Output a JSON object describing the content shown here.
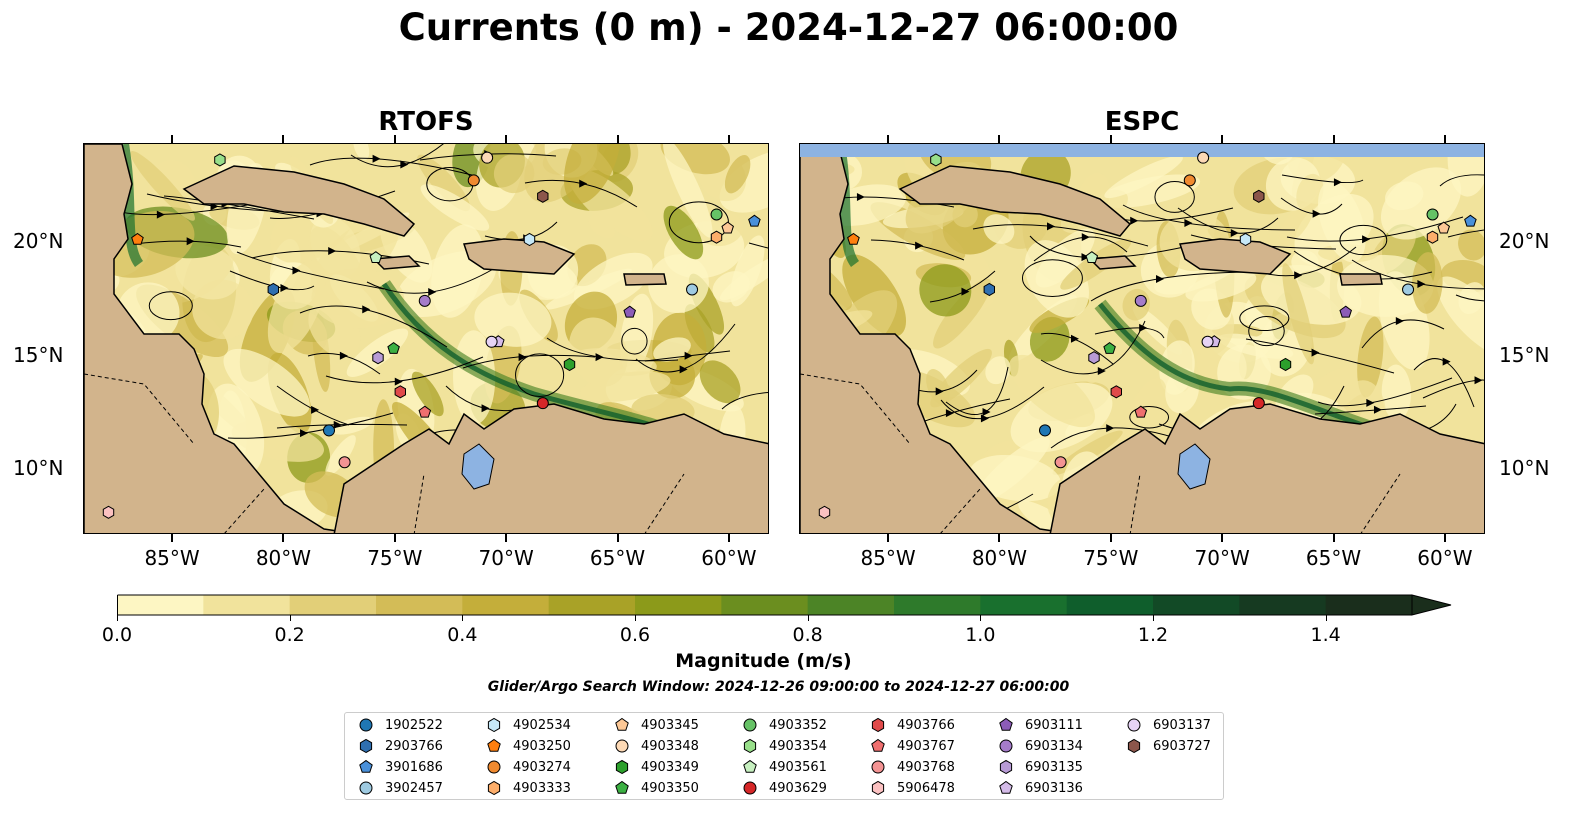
{
  "title": "Currents (0 m) - 2024-12-27 06:00:00",
  "panels": [
    {
      "title": "RTOFS"
    },
    {
      "title": "ESPC"
    }
  ],
  "lat_labels": [
    "20°N",
    "15°N",
    "10°N"
  ],
  "lon_labels": [
    "85°W",
    "80°W",
    "75°W",
    "70°W",
    "65°W",
    "60°W"
  ],
  "colorbar": {
    "label": "Magnitude (m/s)",
    "ticks": [
      "0.0",
      "0.2",
      "0.4",
      "0.6",
      "0.8",
      "1.0",
      "1.2",
      "1.4"
    ],
    "min": 0.0,
    "max": 1.5,
    "step": 0.1,
    "extend": "max",
    "colors": [
      "#fdf6c3",
      "#f1e39c",
      "#e2cf78",
      "#d3bc57",
      "#c4ae3a",
      "#a9a227",
      "#8c9a1a",
      "#6b8e1f",
      "#4c8426",
      "#2e7a2b",
      "#19702e",
      "#0f5e2c",
      "#124a26",
      "#163a21",
      "#1a2e1c"
    ]
  },
  "search_window": "Glider/Argo Search Window: 2024-12-26 09:00:00 to 2024-12-27 06:00:00",
  "colors": {
    "land": "#d2b48c",
    "ocean_low": "#fdf6c3",
    "ocean_mid": "#8c9a1a",
    "lakes": "#8db3e2"
  },
  "legend": [
    {
      "id": "1902522",
      "marker": "circle",
      "color": "#1f77b4"
    },
    {
      "id": "2903766",
      "marker": "hexagon",
      "color": "#2f6fb0"
    },
    {
      "id": "3901686",
      "marker": "pentagon",
      "color": "#4a90d9"
    },
    {
      "id": "3902457",
      "marker": "circle",
      "color": "#9ecae1"
    },
    {
      "id": "4902534",
      "marker": "hexagon",
      "color": "#c6e8f7"
    },
    {
      "id": "4903250",
      "marker": "pentagon",
      "color": "#ff7f0e"
    },
    {
      "id": "4903274",
      "marker": "circle",
      "color": "#f08a30"
    },
    {
      "id": "4903333",
      "marker": "hexagon",
      "color": "#fdae6b"
    },
    {
      "id": "4903345",
      "marker": "pentagon",
      "color": "#fdc896"
    },
    {
      "id": "4903348",
      "marker": "circle",
      "color": "#fdd9b5"
    },
    {
      "id": "4903349",
      "marker": "hexagon",
      "color": "#2ca02c"
    },
    {
      "id": "4903350",
      "marker": "pentagon",
      "color": "#3cb043"
    },
    {
      "id": "4903352",
      "marker": "circle",
      "color": "#66c266"
    },
    {
      "id": "4903354",
      "marker": "hexagon",
      "color": "#98df8a"
    },
    {
      "id": "4903561",
      "marker": "pentagon",
      "color": "#c7f0c0"
    },
    {
      "id": "4903629",
      "marker": "circle",
      "color": "#d62728"
    },
    {
      "id": "4903766",
      "marker": "hexagon",
      "color": "#e04a4a"
    },
    {
      "id": "4903767",
      "marker": "pentagon",
      "color": "#ef6f6f"
    },
    {
      "id": "4903768",
      "marker": "circle",
      "color": "#f39393"
    },
    {
      "id": "5906478",
      "marker": "hexagon",
      "color": "#fbc1c1"
    },
    {
      "id": "6903111",
      "marker": "pentagon",
      "color": "#8c5cb8"
    },
    {
      "id": "6903134",
      "marker": "circle",
      "color": "#a57cc9"
    },
    {
      "id": "6903135",
      "marker": "hexagon",
      "color": "#b89bd6"
    },
    {
      "id": "6903136",
      "marker": "pentagon",
      "color": "#d4bbe8"
    },
    {
      "id": "6903137",
      "marker": "circle",
      "color": "#e6d3f5"
    },
    {
      "id": "6903727",
      "marker": "hexagon",
      "color": "#8c564b"
    }
  ],
  "floats": [
    {
      "id": "1902522",
      "lon": -78.0,
      "lat": 11.6
    },
    {
      "id": "2903766",
      "lon": -80.5,
      "lat": 17.8
    },
    {
      "id": "3901686",
      "lon": -58.9,
      "lat": 20.8
    },
    {
      "id": "3902457",
      "lon": -61.7,
      "lat": 17.8
    },
    {
      "id": "4902534",
      "lon": -69.0,
      "lat": 20.0
    },
    {
      "id": "4903250",
      "lon": -86.6,
      "lat": 20.0
    },
    {
      "id": "4903274",
      "lon": -71.5,
      "lat": 22.6
    },
    {
      "id": "4903333",
      "lon": -60.6,
      "lat": 20.1
    },
    {
      "id": "4903345",
      "lon": -60.1,
      "lat": 20.5
    },
    {
      "id": "4903348",
      "lon": -70.9,
      "lat": 23.6
    },
    {
      "id": "4903349",
      "lon": -67.2,
      "lat": 14.5
    },
    {
      "id": "4903350",
      "lon": -75.1,
      "lat": 15.2
    },
    {
      "id": "4903352",
      "lon": -60.6,
      "lat": 21.1
    },
    {
      "id": "4903354",
      "lon": -82.9,
      "lat": 23.5
    },
    {
      "id": "4903561",
      "lon": -75.9,
      "lat": 19.2
    },
    {
      "id": "4903629",
      "lon": -68.4,
      "lat": 12.8
    },
    {
      "id": "4903766",
      "lon": -74.8,
      "lat": 13.3
    },
    {
      "id": "4903767",
      "lon": -73.7,
      "lat": 12.4
    },
    {
      "id": "4903768",
      "lon": -77.3,
      "lat": 10.2
    },
    {
      "id": "5906478",
      "lon": -87.9,
      "lat": 8.0
    },
    {
      "id": "6903111",
      "lon": -64.5,
      "lat": 16.8
    },
    {
      "id": "6903134",
      "lon": -73.7,
      "lat": 17.3
    },
    {
      "id": "6903135",
      "lon": -75.8,
      "lat": 14.8
    },
    {
      "id": "6903136",
      "lon": -70.4,
      "lat": 15.5
    },
    {
      "id": "6903137",
      "lon": -70.7,
      "lat": 15.5
    },
    {
      "id": "6903727",
      "lon": -68.4,
      "lat": 21.9
    }
  ]
}
